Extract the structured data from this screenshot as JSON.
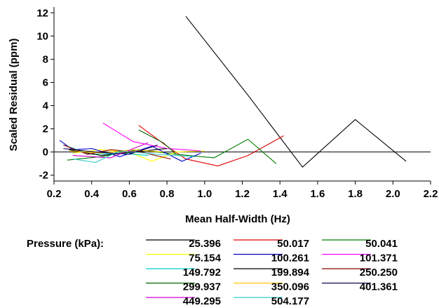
{
  "chart_data": {
    "type": "line",
    "xlabel": "Mean Half-Width (Hz)",
    "ylabel": "Scaled Residual (ppm)",
    "xlim": [
      0.2,
      2.2
    ],
    "ylim": [
      -2.5,
      12.5
    ],
    "xticks": [
      0.2,
      0.4,
      0.6,
      0.8,
      1.0,
      1.2,
      1.4,
      1.6,
      1.8,
      2.0,
      2.2
    ],
    "xtick_labels": [
      "0.2",
      "0.4",
      "0.6",
      "0.8",
      "1.0",
      "1.2",
      "1.4",
      "1.6",
      "1.8",
      "2.0",
      "2.2"
    ],
    "yticks": [
      -2,
      0,
      2,
      4,
      6,
      8,
      10,
      12
    ],
    "ytick_labels": [
      "-2",
      "0",
      "2",
      "4",
      "6",
      "8",
      "10",
      "12"
    ],
    "zero_line": true,
    "grid": false,
    "legend_title": "Pressure (kPa):",
    "legend_position": "bottom",
    "series": [
      {
        "name": "25.396",
        "color": "#000000",
        "x": [
          0.9,
          1.23,
          1.52,
          1.8,
          2.07
        ],
        "y": [
          11.7,
          4.9,
          -1.3,
          2.8,
          -0.8
        ]
      },
      {
        "name": "50.017",
        "color": "#e00000",
        "x": [
          0.65,
          0.8,
          0.9,
          1.07,
          1.23,
          1.42
        ],
        "y": [
          2.3,
          0.5,
          -0.6,
          -1.2,
          -0.3,
          1.4
        ]
      },
      {
        "name": "50.041",
        "color": "#008000",
        "x": [
          0.27,
          0.45,
          0.65,
          0.85,
          1.05,
          1.23,
          1.38
        ],
        "y": [
          -0.7,
          -0.4,
          0.2,
          -0.2,
          -0.5,
          1.1,
          -1.0
        ]
      },
      {
        "name": "75.154",
        "color": "#ffff00",
        "x": [
          0.3,
          0.45,
          0.6,
          0.72,
          0.85,
          1.0
        ],
        "y": [
          -0.1,
          0.2,
          0.0,
          -0.8,
          0.0,
          0.1
        ]
      },
      {
        "name": "100.261",
        "color": "#0000cc",
        "x": [
          0.23,
          0.3,
          0.4,
          0.55,
          0.72,
          0.88,
          0.98
        ],
        "y": [
          1.0,
          0.2,
          0.3,
          -0.4,
          0.5,
          -0.8,
          -0.1
        ]
      },
      {
        "name": "101.371",
        "color": "#ff00ff",
        "x": [
          0.46,
          0.62,
          0.8,
          0.98
        ],
        "y": [
          2.5,
          0.9,
          0.3,
          0.1
        ]
      },
      {
        "name": "149.792",
        "color": "#00cccc",
        "x": [
          0.25,
          0.4,
          0.55,
          0.7
        ],
        "y": [
          0.6,
          -0.2,
          -0.1,
          -0.3
        ]
      },
      {
        "name": "199.894",
        "color": "#000000",
        "x": [
          0.28,
          0.45,
          0.62,
          0.8
        ],
        "y": [
          0.2,
          -0.3,
          0.0,
          0.3
        ]
      },
      {
        "name": "250.250",
        "color": "#8b0000",
        "x": [
          0.25,
          0.38,
          0.5,
          0.66,
          0.82
        ],
        "y": [
          0.6,
          -0.2,
          0.2,
          0.0,
          -0.6
        ]
      },
      {
        "name": "299.937",
        "color": "#006400",
        "x": [
          0.65,
          0.78,
          0.85
        ],
        "y": [
          1.9,
          0.8,
          -0.2
        ]
      },
      {
        "name": "350.096",
        "color": "#ffcc00",
        "x": [
          0.28,
          0.45,
          0.62,
          0.78
        ],
        "y": [
          0.1,
          -0.1,
          0.2,
          0.0
        ]
      },
      {
        "name": "401.361",
        "color": "#1a0050",
        "x": [
          0.25,
          0.42,
          0.6,
          0.75
        ],
        "y": [
          0.3,
          0.0,
          -0.2,
          0.6
        ]
      },
      {
        "name": "449.295",
        "color": "#cc00cc",
        "x": [
          0.3,
          0.5,
          0.7
        ],
        "y": [
          -0.3,
          -0.5,
          0.8
        ]
      },
      {
        "name": "504.177",
        "color": "#33cccc",
        "x": [
          0.3,
          0.42,
          0.55,
          0.75,
          0.95
        ],
        "y": [
          -0.6,
          -0.9,
          0.1,
          -0.2,
          -0.4
        ]
      }
    ]
  }
}
